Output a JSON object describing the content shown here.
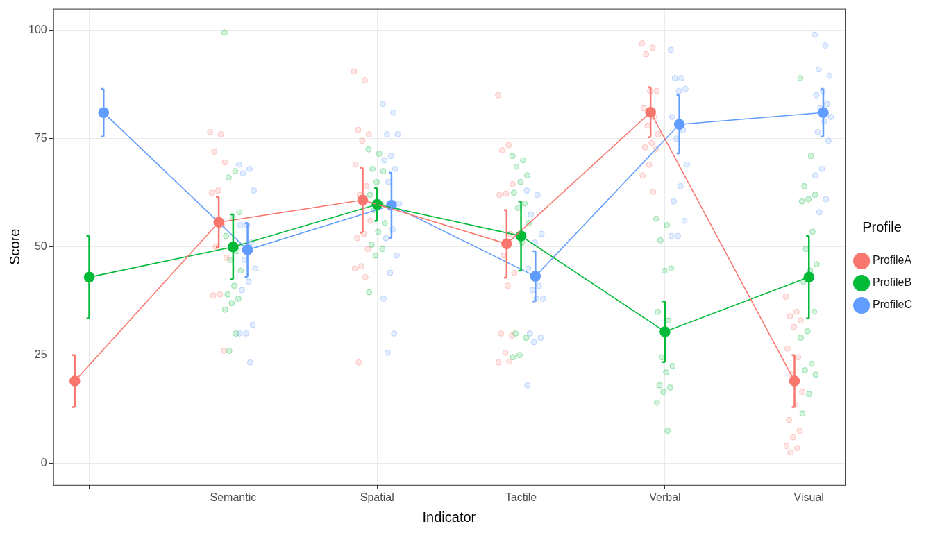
{
  "chart_data": {
    "type": "line",
    "x_label": "Indicator",
    "y_label": "Score",
    "legend": "right",
    "legend_title": "Profile",
    "grid": true,
    "marker": "circle",
    "categories": [
      null,
      "Semantic",
      "Spatial",
      "Tactile",
      "Verbal",
      "Visual"
    ],
    "ylim": [
      -5,
      105
    ],
    "yticks": [
      0,
      25,
      50,
      75,
      100
    ],
    "series": [
      {
        "name": "ProfileA",
        "color": "#F8766D",
        "values": [
          19,
          55.7,
          60.8,
          50.7,
          81.1,
          19
        ],
        "error": [
          6,
          5.8,
          7.5,
          7.8,
          5.8,
          6
        ],
        "points": [
          [],
          [
            76.5,
            76,
            72,
            69.5,
            63,
            62.5,
            55,
            50,
            47.5,
            39,
            38.8,
            26
          ],
          [
            90.5,
            88.5,
            77,
            76,
            74.5,
            69,
            64,
            62,
            56,
            53,
            52,
            49.5,
            45.5,
            45,
            43,
            23.3
          ],
          [
            85,
            73.5,
            72.3,
            64.5,
            62.3,
            62,
            53,
            48,
            44,
            41,
            30,
            29.5,
            25.5,
            23.3,
            23.5
          ],
          [
            97,
            96,
            94.5,
            86,
            86,
            82,
            80,
            78,
            76,
            74,
            73,
            72.5,
            69,
            66.5,
            62.7
          ],
          [
            38.5,
            35,
            34,
            33,
            31.5,
            26.5,
            24.5,
            20.5,
            16.5,
            13.5,
            10,
            7.5,
            6,
            4,
            3.5,
            2.5
          ]
        ]
      },
      {
        "name": "ProfileB",
        "color": "#00BA38",
        "values": [
          43,
          50,
          59.8,
          52.5,
          30.4,
          43
        ],
        "error": [
          9.5,
          7.5,
          3.8,
          8,
          7,
          9.5
        ],
        "points": [
          [],
          [
            99.5,
            67.5,
            66,
            58,
            57,
            52.5,
            49,
            47,
            44.5,
            41,
            39,
            38,
            37,
            35.5,
            30,
            26
          ],
          [
            72.5,
            71.5,
            68,
            67.5,
            65,
            62,
            60,
            58.5,
            55.5,
            53.5,
            50.5,
            49.5,
            48,
            39.5
          ],
          [
            71,
            70,
            68.5,
            66.5,
            65,
            62.5,
            60,
            59,
            55.5,
            51,
            30,
            29,
            25,
            24.5
          ],
          [
            56.5,
            55,
            51.5,
            45,
            44.5,
            35,
            33,
            24.5,
            22.5,
            21,
            18,
            17.5,
            16.5,
            14,
            7.5
          ],
          [
            89,
            71,
            64,
            62,
            61,
            60.5,
            53.5,
            49.5,
            46,
            44.5,
            42,
            35,
            30.5,
            29,
            23,
            21.5,
            20.5,
            16,
            11.5
          ]
        ]
      },
      {
        "name": "ProfileC",
        "color": "#619CFF",
        "values": [
          81,
          49.3,
          59.6,
          43.2,
          78.3,
          81
        ],
        "error": [
          5.5,
          6.2,
          7.5,
          5.8,
          6.7,
          5.5
        ],
        "points": [
          [],
          [
            69,
            68,
            67,
            63,
            55,
            55,
            51,
            47,
            45,
            42,
            40,
            32,
            30,
            30,
            23.3
          ],
          [
            83,
            81,
            76,
            76,
            71,
            70,
            68,
            65,
            60,
            54,
            52,
            48,
            44,
            38,
            30,
            25.5
          ],
          [
            63,
            62,
            57.5,
            53,
            51,
            45,
            41,
            40,
            38,
            38,
            30,
            29,
            28,
            18
          ],
          [
            95.5,
            89,
            89,
            86.5,
            86,
            80,
            77,
            75,
            69,
            64,
            60.5,
            56,
            52.5,
            52.5
          ],
          [
            99,
            96.5,
            91,
            89.5,
            86,
            85,
            83,
            82,
            80,
            79,
            76.5,
            74.5,
            68,
            66.5,
            61,
            58
          ]
        ]
      }
    ]
  }
}
